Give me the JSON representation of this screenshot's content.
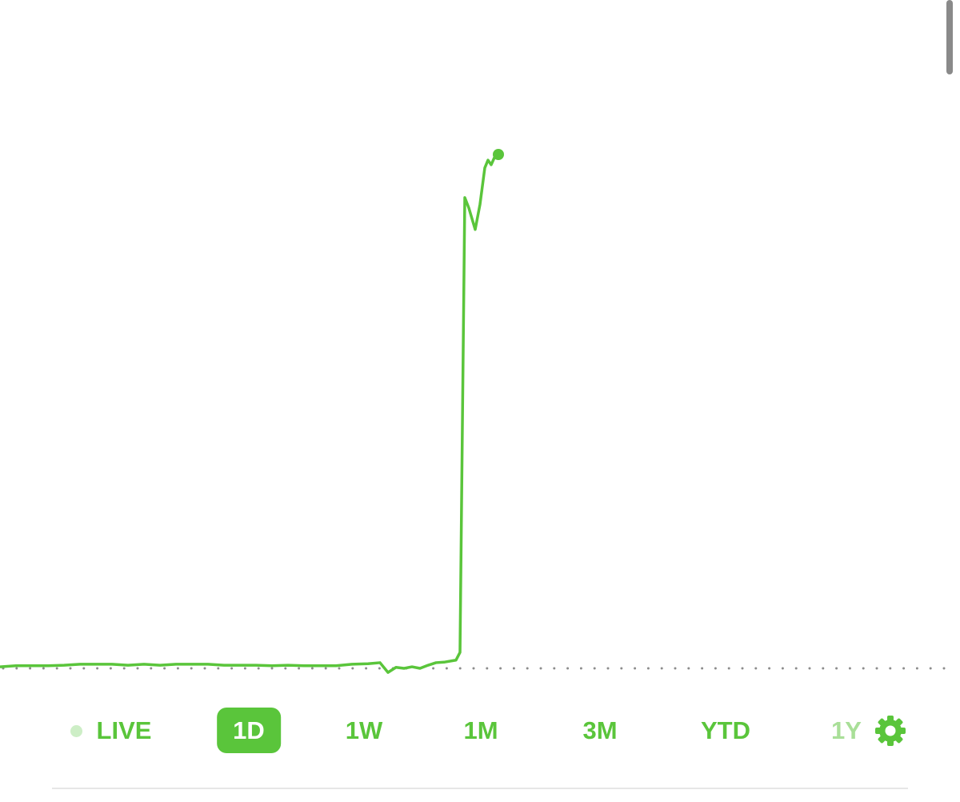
{
  "chart_data": {
    "type": "line",
    "color": "#5ac53b",
    "x": [
      0,
      20,
      40,
      60,
      80,
      100,
      120,
      140,
      160,
      180,
      200,
      220,
      240,
      260,
      280,
      300,
      320,
      340,
      360,
      380,
      400,
      420,
      440,
      460,
      475,
      485,
      495,
      505,
      515,
      525,
      535,
      545,
      555,
      570,
      575,
      581,
      586,
      594,
      600,
      606,
      610,
      614,
      618,
      623
    ],
    "values": [
      0.3,
      0.5,
      0.5,
      0.5,
      0.6,
      0.8,
      0.8,
      0.8,
      0.6,
      0.8,
      0.6,
      0.8,
      0.8,
      0.8,
      0.6,
      0.6,
      0.6,
      0.5,
      0.6,
      0.5,
      0.5,
      0.5,
      0.8,
      0.9,
      1.1,
      -0.8,
      0.2,
      0,
      0.3,
      0,
      0.6,
      1.1,
      1.2,
      1.6,
      3.1,
      91.6,
      89.6,
      85.4,
      90.3,
      97.4,
      98.9,
      98.0,
      99.4,
      100
    ],
    "xlim": [
      0,
      1190
    ],
    "ylim": [
      0,
      100
    ],
    "reference_line": 0
  },
  "range_selector": {
    "ranges": [
      "LIVE",
      "1D",
      "1W",
      "1M",
      "3M",
      "YTD",
      "1Y"
    ],
    "selected": 1
  }
}
